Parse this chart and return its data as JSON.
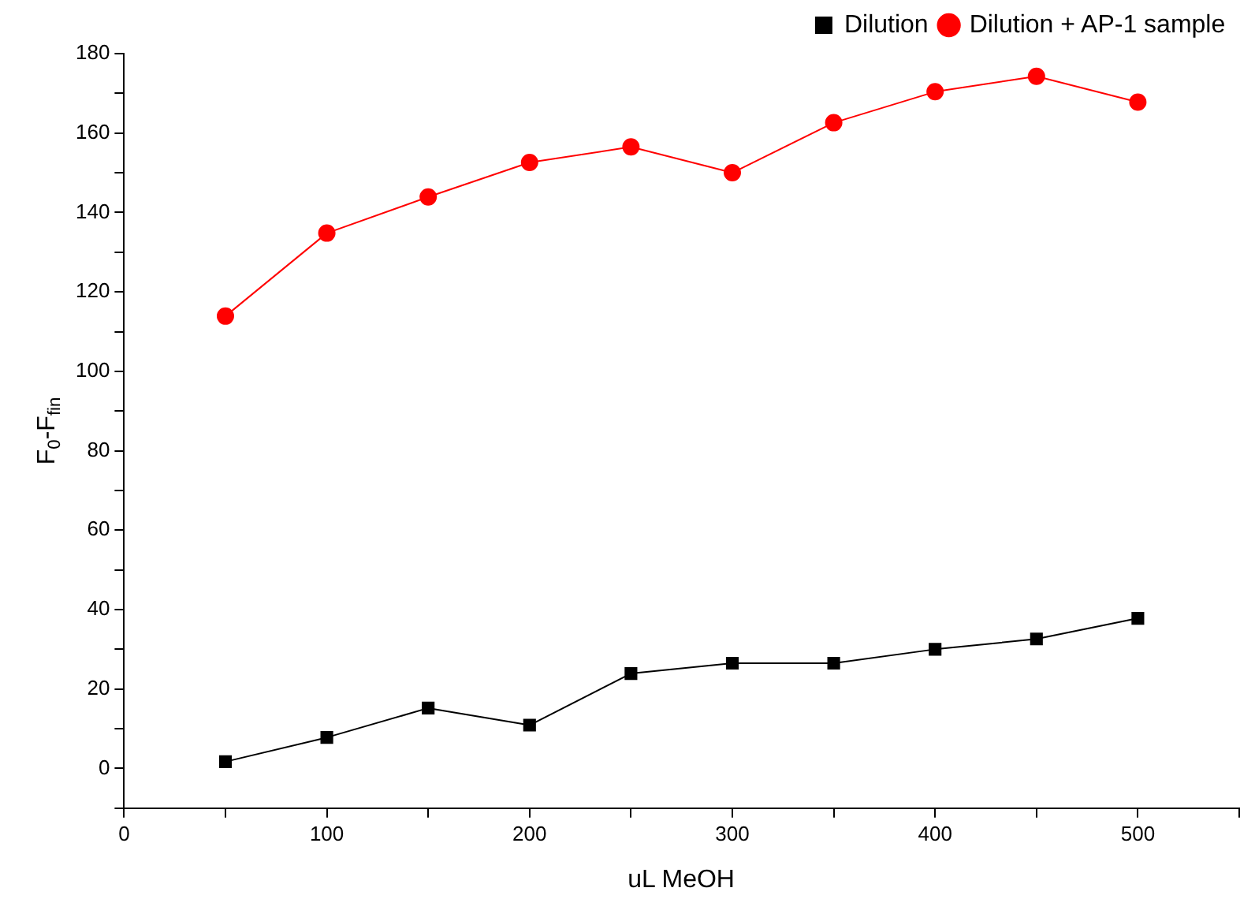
{
  "chart_data": {
    "type": "line",
    "xlabel": "uL MeOH",
    "ylabel": "F$_{0}$-F$_{fin}$",
    "x": [
      50,
      100,
      150,
      200,
      250,
      300,
      350,
      400,
      450,
      500
    ],
    "series": [
      {
        "name": "Dilution",
        "color": "#000000",
        "marker": "square",
        "values": [
          1.7,
          7.8,
          15.2,
          10.9,
          23.9,
          26.5,
          26.5,
          30,
          32.6,
          37.8
        ]
      },
      {
        "name": "Dilution + AP-1 sample",
        "color": "#ff0000",
        "marker": "circle",
        "values": [
          113.9,
          134.8,
          143.9,
          152.6,
          156.5,
          150,
          162.6,
          170.4,
          174.3,
          167.8
        ]
      }
    ],
    "xlim": [
      0,
      550
    ],
    "xticks": [
      0,
      {
        "value": 50,
        "label": null
      },
      100,
      {
        "value": 150,
        "label": null
      },
      200,
      {
        "value": 250,
        "label": null
      },
      300,
      {
        "value": 350,
        "label": null
      },
      400,
      {
        "value": 450,
        "label": null
      },
      500,
      {
        "value": 550,
        "label": null
      }
    ],
    "ylim": [
      -10,
      180
    ],
    "yticks": [
      {
        "value": -10,
        "label": null
      },
      0,
      {
        "value": 10,
        "label": null
      },
      20,
      {
        "value": 30,
        "label": null
      },
      40,
      {
        "value": 50,
        "label": null
      },
      60,
      {
        "value": 70,
        "label": null
      },
      80,
      {
        "value": 90,
        "label": null
      },
      100,
      {
        "value": 110,
        "label": null
      },
      120,
      {
        "value": 130,
        "label": null
      },
      140,
      {
        "value": 150,
        "label": null
      },
      160,
      {
        "value": 170,
        "label": null
      },
      180
    ],
    "grid": false,
    "legend": "top right",
    "line_style": "solid"
  }
}
